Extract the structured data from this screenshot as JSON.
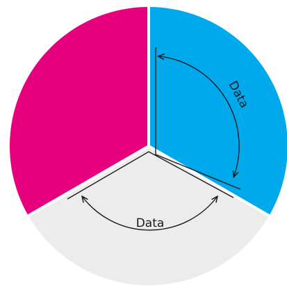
{
  "annotations": [
    {
      "label": "Data"
    },
    {
      "label": "Data"
    }
  ]
}
